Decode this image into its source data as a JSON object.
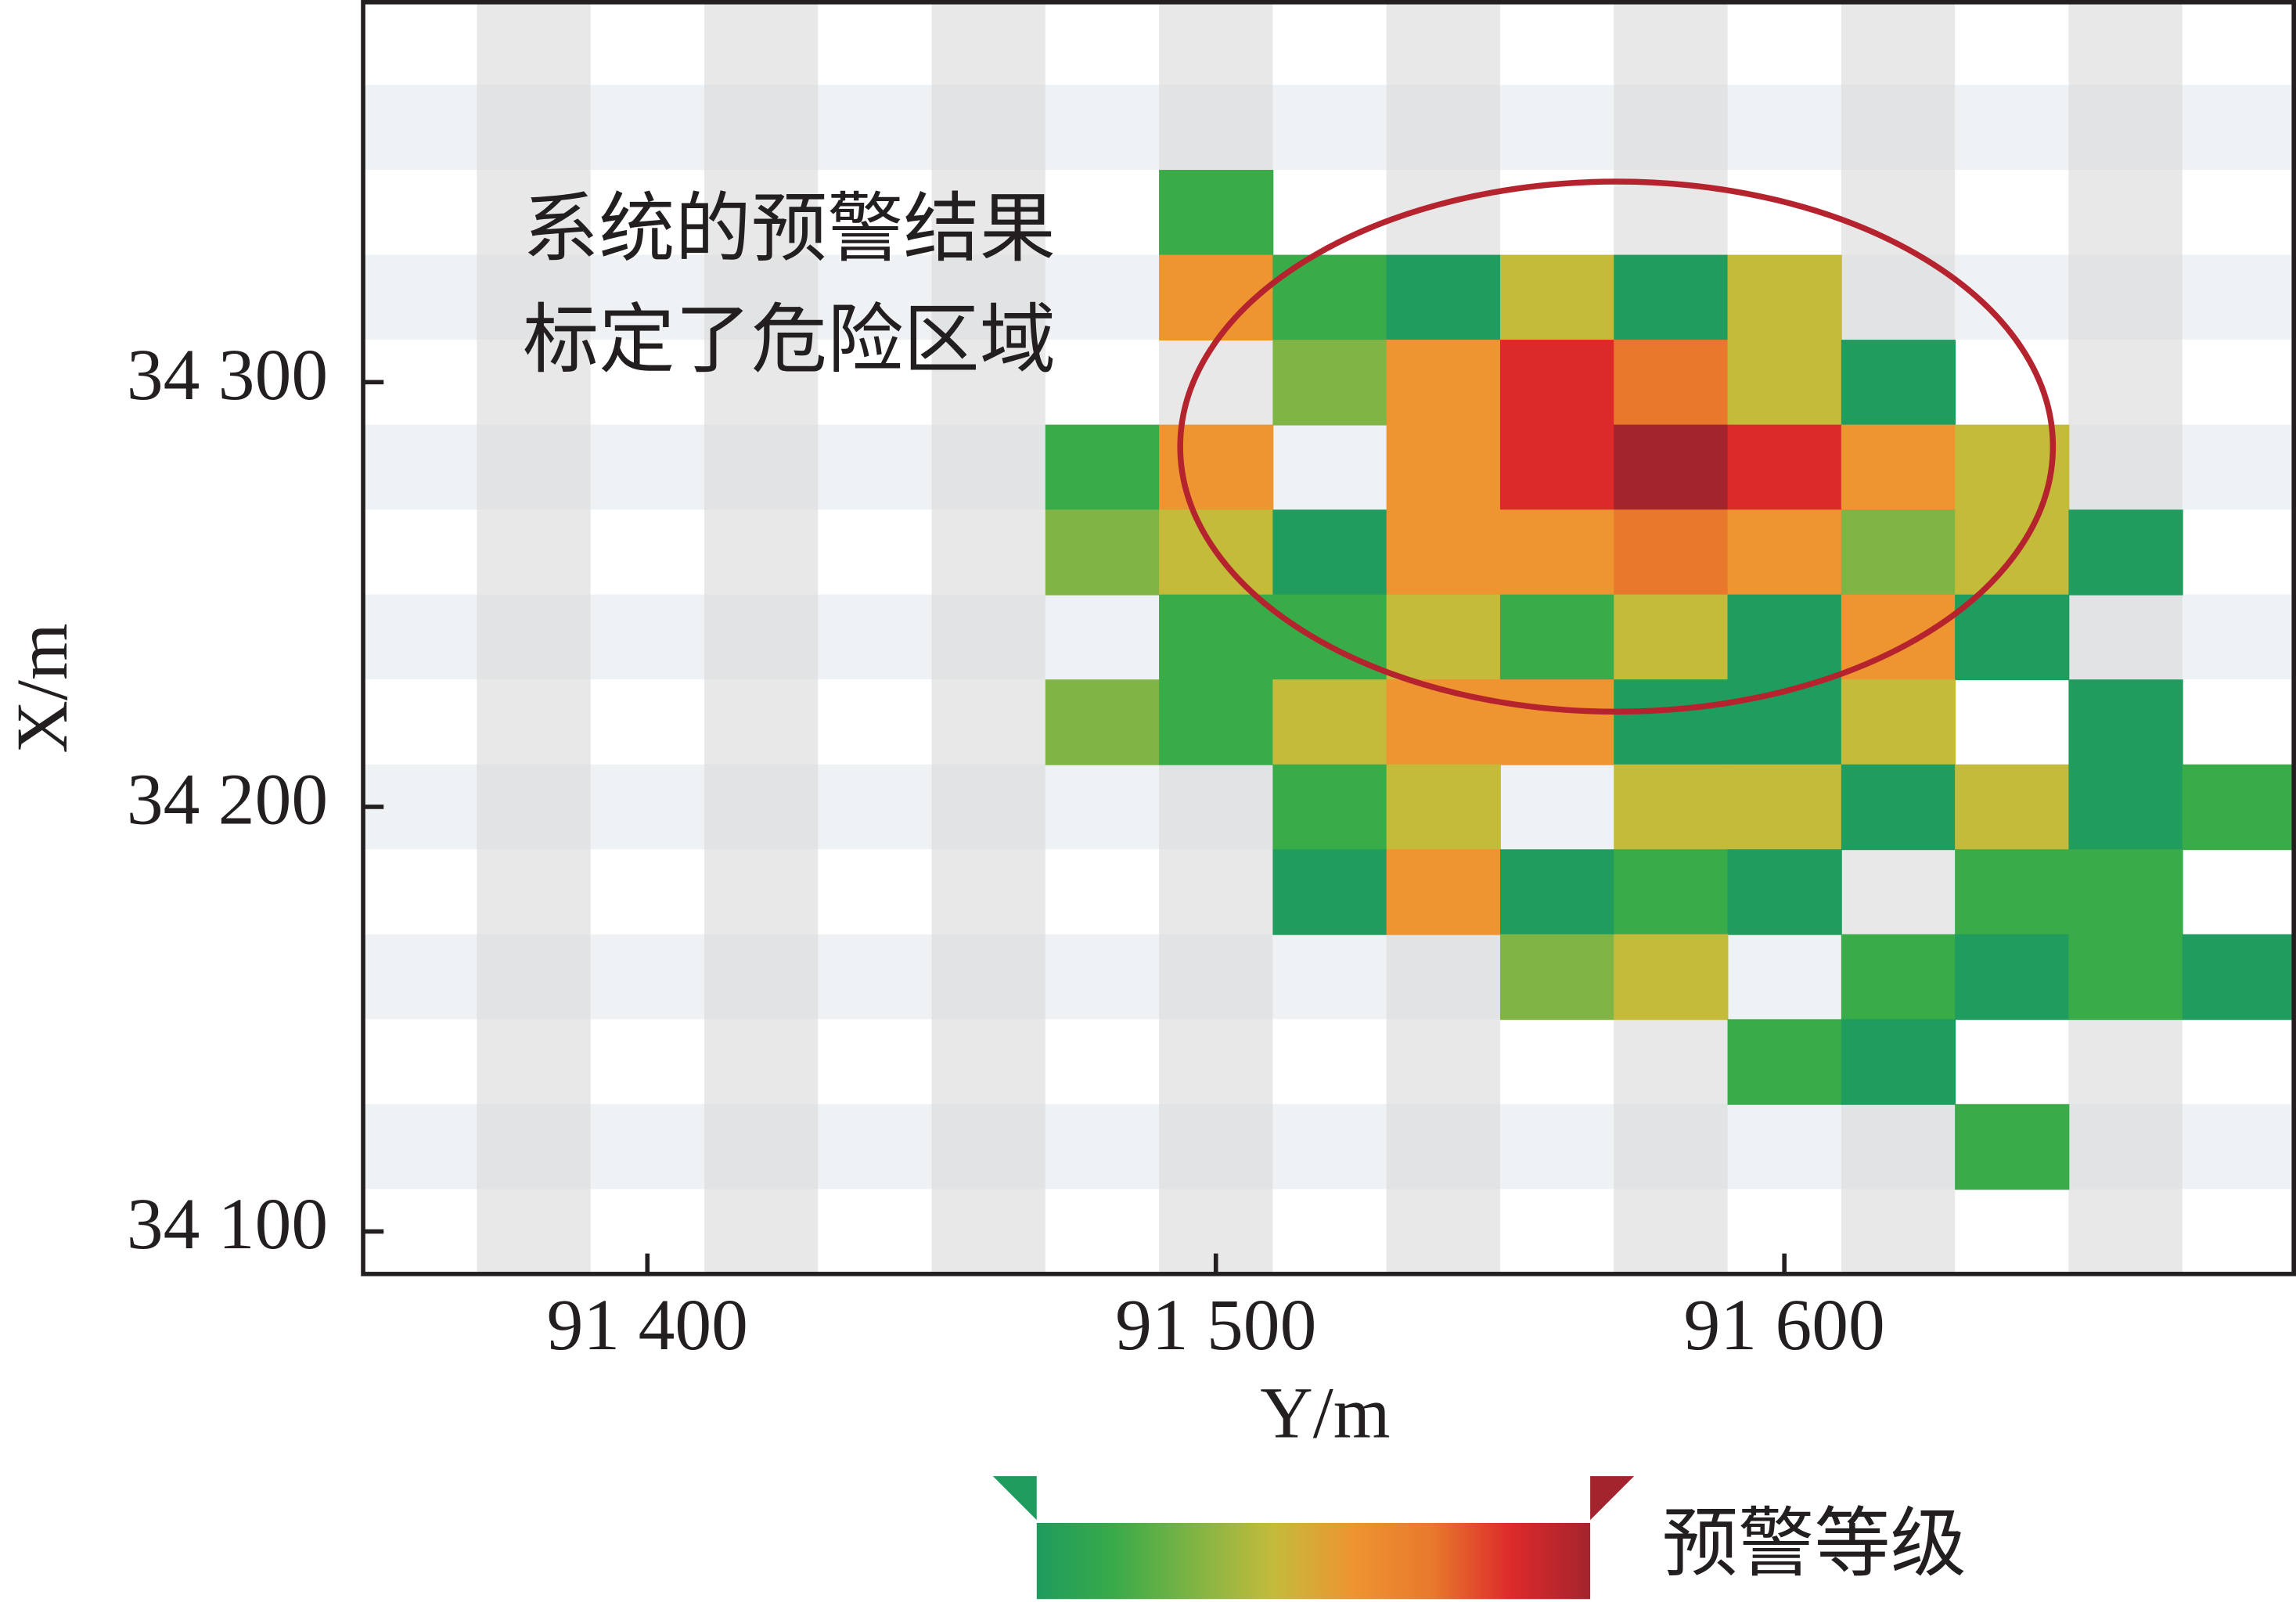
{
  "chart_data": {
    "type": "heatmap",
    "xlabel": "Y/m",
    "ylabel": "X/m",
    "xlim": [
      91350,
      91690
    ],
    "ylim": [
      34090,
      34390
    ],
    "xticks": [
      {
        "value": 91400,
        "label": "91 400"
      },
      {
        "value": 91500,
        "label": "91 500"
      },
      {
        "value": 91600,
        "label": "91 600"
      }
    ],
    "yticks": [
      {
        "value": 34100,
        "label": "34 100"
      },
      {
        "value": 34200,
        "label": "34 200"
      },
      {
        "value": 34300,
        "label": "34 300"
      }
    ],
    "xbins": [
      91370,
      91390,
      91410,
      91430,
      91450,
      91470,
      91490,
      91510,
      91530,
      91550,
      91570,
      91590,
      91610,
      91630,
      91650,
      91670,
      91690
    ],
    "ybins": [
      34390,
      34370,
      34350,
      34330,
      34310,
      34290,
      34270,
      34250,
      34230,
      34210,
      34190,
      34170,
      34150,
      34130,
      34110,
      34090
    ],
    "clim": [
      1,
      8
    ],
    "colormap": [
      "#1f9c5e",
      "#3aab49",
      "#80b444",
      "#c4bb3b",
      "#ee9431",
      "#e8792c",
      "#dc2a2b",
      "#a4242d"
    ],
    "values": [
      [
        null,
        null,
        null,
        null,
        null,
        null,
        null,
        null,
        null,
        null,
        null,
        null,
        null,
        null,
        null,
        null
      ],
      [
        null,
        null,
        null,
        null,
        null,
        null,
        null,
        null,
        null,
        null,
        null,
        null,
        null,
        null,
        null,
        null
      ],
      [
        null,
        null,
        null,
        null,
        null,
        null,
        2,
        null,
        null,
        null,
        null,
        null,
        null,
        null,
        null,
        null
      ],
      [
        null,
        null,
        null,
        null,
        null,
        null,
        5,
        2,
        1,
        4,
        1,
        4,
        null,
        null,
        null,
        null
      ],
      [
        null,
        null,
        null,
        null,
        null,
        null,
        null,
        3,
        5,
        7,
        6,
        4,
        1,
        null,
        null,
        null
      ],
      [
        null,
        null,
        null,
        null,
        null,
        2,
        5,
        null,
        5,
        7,
        8,
        7,
        5,
        4,
        null,
        null
      ],
      [
        null,
        null,
        null,
        null,
        null,
        3,
        4,
        1,
        5,
        5,
        6,
        5,
        3,
        4,
        1,
        null
      ],
      [
        null,
        null,
        null,
        null,
        null,
        null,
        2,
        2,
        4,
        2,
        4,
        1,
        5,
        1,
        null,
        null
      ],
      [
        null,
        null,
        null,
        null,
        null,
        3,
        2,
        4,
        5,
        5,
        1,
        1,
        4,
        null,
        1,
        null
      ],
      [
        null,
        null,
        null,
        null,
        null,
        null,
        null,
        2,
        4,
        null,
        4,
        4,
        1,
        4,
        1,
        2
      ],
      [
        null,
        null,
        null,
        null,
        null,
        null,
        null,
        1,
        5,
        1,
        2,
        1,
        null,
        2,
        2,
        null
      ],
      [
        null,
        null,
        null,
        null,
        null,
        null,
        null,
        null,
        null,
        3,
        4,
        null,
        2,
        1,
        2,
        1
      ],
      [
        null,
        null,
        null,
        null,
        null,
        null,
        null,
        null,
        null,
        null,
        null,
        2,
        1,
        null,
        null,
        null
      ],
      [
        null,
        null,
        null,
        null,
        null,
        null,
        null,
        null,
        null,
        null,
        null,
        null,
        null,
        2,
        null,
        null
      ],
      [
        null,
        null,
        null,
        null,
        null,
        null,
        null,
        null,
        null,
        null,
        null,
        null,
        null,
        null,
        null,
        null
      ]
    ],
    "annotation": [
      "系统的预警结果",
      "标定了危险区域"
    ],
    "colorbar_label": "预警等级"
  }
}
